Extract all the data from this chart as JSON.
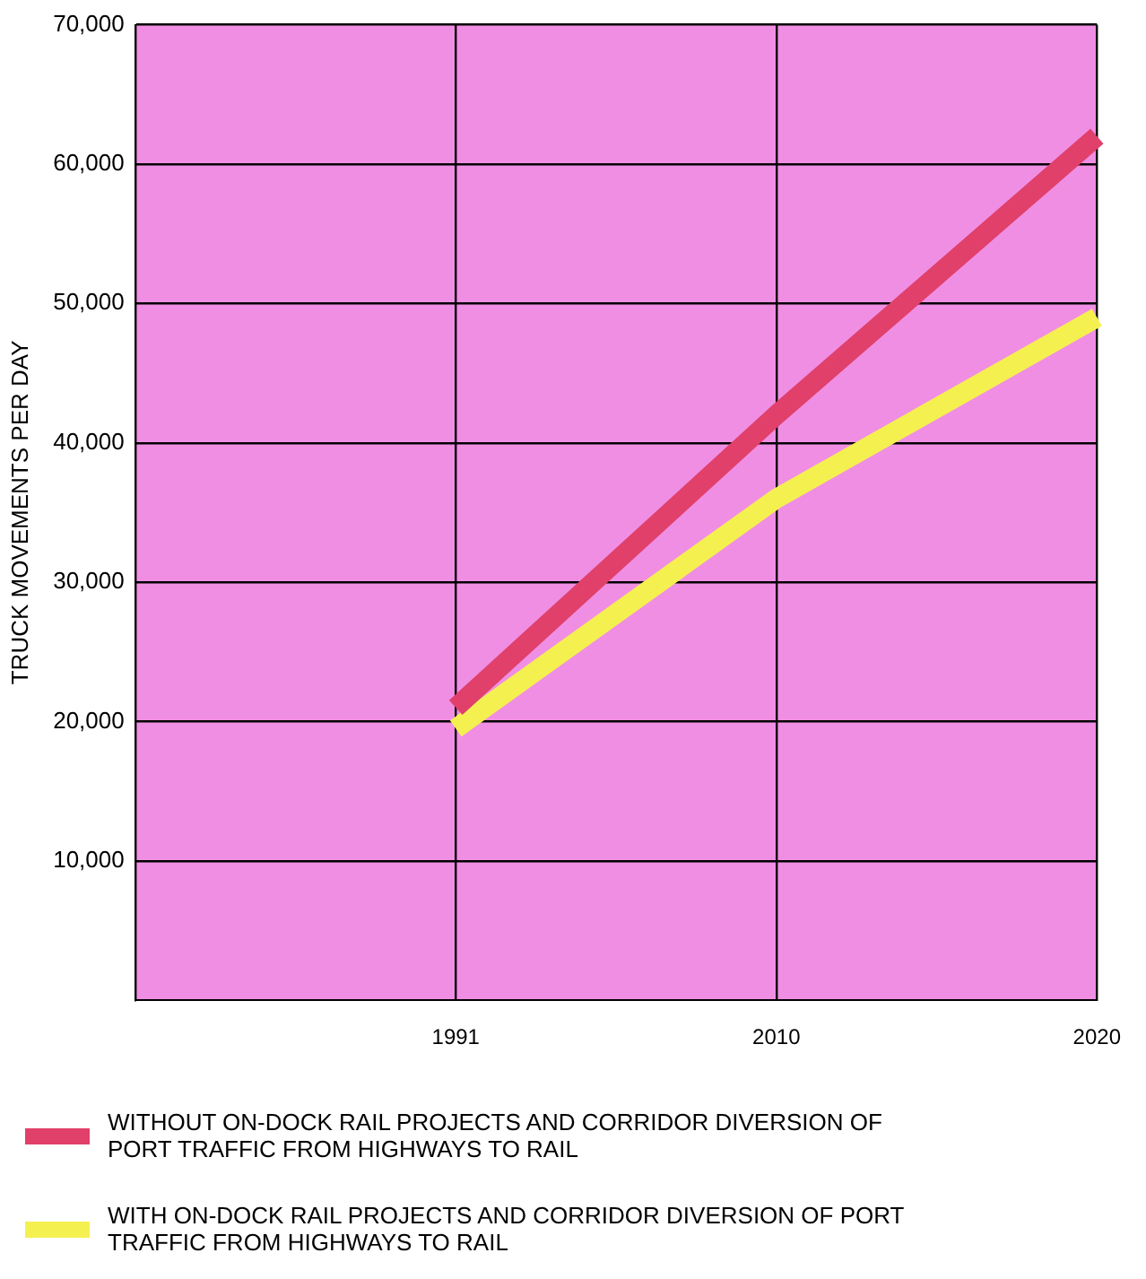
{
  "chart_data": {
    "type": "line",
    "ylabel": "TRUCK MOVEMENTS PER DAY",
    "categories": [
      null,
      "1991",
      "2010",
      "2020"
    ],
    "series": [
      {
        "name": "WITHOUT ON-DOCK RAIL PROJECTS AND CORRIDOR DIVERSION OF PORT TRAFFIC FROM HIGHWAYS TO RAIL",
        "color": "#e0406a",
        "values": [
          null,
          21000,
          42000,
          62000
        ]
      },
      {
        "name": "WITH ON-DOCK RAIL PROJECTS AND CORRIDOR DIVERSION OF PORT TRAFFIC FROM HIGHWAYS TO RAIL",
        "color": "#f4f050",
        "values": [
          null,
          19500,
          36000,
          49000
        ]
      }
    ],
    "ylim": [
      0,
      70000
    ],
    "yticks": [
      {
        "value": 10000,
        "label": "10,000"
      },
      {
        "value": 20000,
        "label": "20,000"
      },
      {
        "value": 30000,
        "label": "30,000"
      },
      {
        "value": 40000,
        "label": "40,000"
      },
      {
        "value": 50000,
        "label": "50,000"
      },
      {
        "value": 60000,
        "label": "60,000"
      },
      {
        "value": 70000,
        "label": "70,000"
      }
    ],
    "grid": true,
    "legend": "bottom",
    "marker": "none",
    "line_style": "solid"
  }
}
